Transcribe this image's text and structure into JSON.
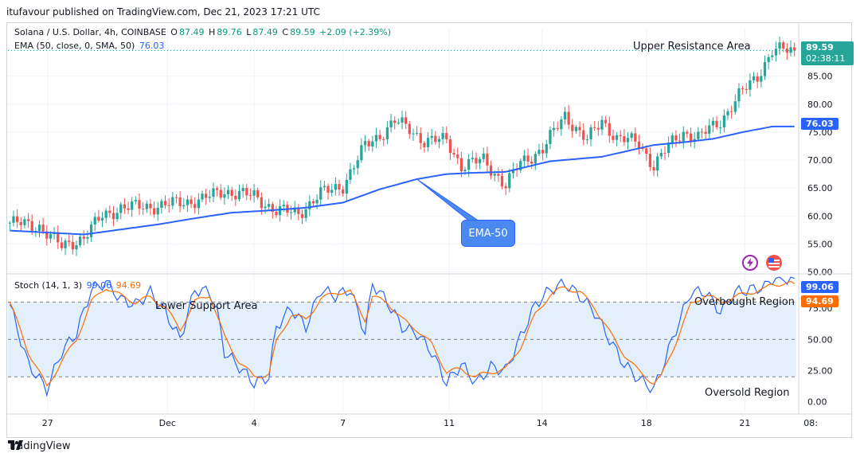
{
  "header": {
    "publisher_line": "itufavour published on TradingView.com, Dec 21, 2023 17:21 UTC"
  },
  "price_legend": {
    "symbol": "Solana / U.S. Dollar, 4h, COINBASE",
    "open_label": "O",
    "open": "87.49",
    "high_label": "H",
    "high": "89.76",
    "low_label": "L",
    "low": "87.49",
    "close_label": "C",
    "close": "89.59",
    "change": "+2.09 (+2.39%)",
    "ema_label": "EMA (50, close, 0, SMA, 50)",
    "ema_value": "76.03"
  },
  "stoch_legend": {
    "label": "Stoch (14, 1, 3)",
    "k_value": "99.06",
    "d_value": "94.69"
  },
  "price_tags": {
    "last_price": "89.59",
    "countdown": "02:38:11",
    "ema": "76.03",
    "stoch_k": "99.06",
    "stoch_d": "94.69"
  },
  "annotations": {
    "upper_resistance": "Upper Resistance Area",
    "lower_support": "Lower Support Area",
    "overbought": "Overbought Region",
    "oversold": "Oversold Region",
    "ema_callout": "EMA-50"
  },
  "footer": {
    "brand": "TradingView"
  },
  "colors": {
    "up": "#26a69a",
    "down": "#ef5350",
    "ema": "#2962ff",
    "stoch_k": "#2962ff",
    "stoch_d": "#ff6d00",
    "band_fill": "#e3f0fb"
  },
  "chart_data": [
    {
      "type": "candlestick",
      "title": "Solana / U.S. Dollar, 4h, COINBASE",
      "y_axis_ticks": [
        50.0,
        55.0,
        60.0,
        65.0,
        70.0,
        75.0,
        80.0,
        85.0
      ],
      "y_tick_labels": [
        "50.00",
        "55.00",
        "60.00",
        "65.00",
        "70.00",
        "75.00",
        "80.00",
        "85.00"
      ],
      "ylim": [
        49.8,
        93.5
      ],
      "x_tick_labels": [
        "27",
        "Dec",
        "4",
        "7",
        "11",
        "14",
        "18",
        "21",
        "08:"
      ],
      "x_tick_index": [
        10.2,
        42.6,
        66.0,
        90.0,
        118.7,
        143.8,
        172.0,
        198.6,
        216.4
      ],
      "n_bars": 213,
      "close_path": [
        [
          0,
          58.8
        ],
        [
          8,
          58.2
        ],
        [
          14,
          54.5
        ],
        [
          20,
          56.2
        ],
        [
          25,
          60.0
        ],
        [
          30,
          61.5
        ],
        [
          40,
          61.8
        ],
        [
          52,
          63.0
        ],
        [
          58,
          64.5
        ],
        [
          66,
          63.5
        ],
        [
          72,
          61.0
        ],
        [
          78,
          60.5
        ],
        [
          84,
          64.0
        ],
        [
          90,
          65.5
        ],
        [
          96,
          72.5
        ],
        [
          100,
          74.5
        ],
        [
          104,
          77.0
        ],
        [
          108,
          75.5
        ],
        [
          112,
          73.5
        ],
        [
          118,
          73.5
        ],
        [
          122,
          69.0
        ],
        [
          128,
          70.0
        ],
        [
          134,
          65.5
        ],
        [
          138,
          69.5
        ],
        [
          144,
          72.0
        ],
        [
          150,
          78.0
        ],
        [
          156,
          73.5
        ],
        [
          160,
          77.0
        ],
        [
          164,
          74.0
        ],
        [
          170,
          73.0
        ],
        [
          174,
          69.0
        ],
        [
          178,
          72.5
        ],
        [
          182,
          75.0
        ],
        [
          186,
          74.0
        ],
        [
          192,
          77.0
        ],
        [
          197,
          81.5
        ],
        [
          202,
          85.0
        ],
        [
          206,
          89.6
        ]
      ],
      "ema50_path": [
        [
          0,
          57.4
        ],
        [
          20,
          56.7
        ],
        [
          30,
          57.6
        ],
        [
          40,
          58.5
        ],
        [
          50,
          59.6
        ],
        [
          60,
          60.6
        ],
        [
          70,
          61.0
        ],
        [
          80,
          61.5
        ],
        [
          90,
          62.4
        ],
        [
          100,
          64.8
        ],
        [
          110,
          66.6
        ],
        [
          118,
          67.5
        ],
        [
          124,
          67.7
        ],
        [
          134,
          67.9
        ],
        [
          146,
          69.8
        ],
        [
          160,
          70.6
        ],
        [
          174,
          72.7
        ],
        [
          182,
          73.2
        ],
        [
          190,
          73.8
        ],
        [
          198,
          75.0
        ],
        [
          206,
          76.0
        ]
      ],
      "last_close": 89.59,
      "ema50_last": 76.03
    },
    {
      "type": "line",
      "title": "Stoch (14, 1, 3)",
      "y_axis_ticks": [
        0.0,
        25.0,
        50.0,
        75.0
      ],
      "y_tick_labels": [
        "0.00",
        "25.00",
        "50.00",
        "75.00"
      ],
      "ylim": [
        -8,
        102
      ],
      "bands": [
        20,
        50,
        80
      ],
      "series": [
        {
          "name": "%K",
          "last": 99.06,
          "points": [
            [
              0,
              78
            ],
            [
              5,
              30
            ],
            [
              10,
              10
            ],
            [
              14,
              40
            ],
            [
              18,
              55
            ],
            [
              22,
              90
            ],
            [
              26,
              96
            ],
            [
              30,
              82
            ],
            [
              34,
              78
            ],
            [
              38,
              88
            ],
            [
              42,
              72
            ],
            [
              46,
              50
            ],
            [
              50,
              90
            ],
            [
              54,
              88
            ],
            [
              56,
              72
            ],
            [
              58,
              40
            ],
            [
              62,
              28
            ],
            [
              66,
              15
            ],
            [
              70,
              20
            ],
            [
              72,
              60
            ],
            [
              76,
              75
            ],
            [
              80,
              60
            ],
            [
              84,
              90
            ],
            [
              88,
              85
            ],
            [
              92,
              90
            ],
            [
              96,
              55
            ],
            [
              98,
              95
            ],
            [
              102,
              80
            ],
            [
              106,
              60
            ],
            [
              110,
              55
            ],
            [
              114,
              40
            ],
            [
              118,
              15
            ],
            [
              122,
              30
            ],
            [
              126,
              15
            ],
            [
              130,
              28
            ],
            [
              134,
              25
            ],
            [
              138,
              52
            ],
            [
              142,
              78
            ],
            [
              146,
              90
            ],
            [
              150,
              95
            ],
            [
              154,
              85
            ],
            [
              158,
              72
            ],
            [
              162,
              50
            ],
            [
              166,
              30
            ],
            [
              170,
              18
            ],
            [
              174,
              10
            ],
            [
              176,
              25
            ],
            [
              180,
              58
            ],
            [
              184,
              88
            ],
            [
              188,
              88
            ],
            [
              192,
              72
            ],
            [
              196,
              88
            ],
            [
              200,
              90
            ],
            [
              204,
              92
            ],
            [
              206,
              99
            ]
          ]
        },
        {
          "name": "%D",
          "last": 94.69,
          "points": [
            [
              0,
              80
            ],
            [
              5,
              40
            ],
            [
              10,
              12
            ],
            [
              14,
              32
            ],
            [
              18,
              50
            ],
            [
              22,
              80
            ],
            [
              26,
              92
            ],
            [
              30,
              85
            ],
            [
              34,
              80
            ],
            [
              38,
              84
            ],
            [
              42,
              76
            ],
            [
              46,
              58
            ],
            [
              50,
              80
            ],
            [
              54,
              86
            ],
            [
              58,
              52
            ],
            [
              62,
              32
            ],
            [
              66,
              20
            ],
            [
              70,
              22
            ],
            [
              72,
              48
            ],
            [
              76,
              70
            ],
            [
              80,
              66
            ],
            [
              84,
              82
            ],
            [
              88,
              88
            ],
            [
              92,
              88
            ],
            [
              96,
              66
            ],
            [
              98,
              84
            ],
            [
              102,
              80
            ],
            [
              106,
              66
            ],
            [
              110,
              58
            ],
            [
              114,
              46
            ],
            [
              118,
              24
            ],
            [
              122,
              26
            ],
            [
              126,
              20
            ],
            [
              130,
              24
            ],
            [
              134,
              26
            ],
            [
              138,
              44
            ],
            [
              142,
              70
            ],
            [
              146,
              86
            ],
            [
              150,
              92
            ],
            [
              154,
              88
            ],
            [
              158,
              76
            ],
            [
              162,
              56
            ],
            [
              166,
              38
            ],
            [
              170,
              24
            ],
            [
              174,
              15
            ],
            [
              176,
              20
            ],
            [
              180,
              48
            ],
            [
              184,
              78
            ],
            [
              188,
              86
            ],
            [
              192,
              80
            ],
            [
              196,
              84
            ],
            [
              200,
              88
            ],
            [
              204,
              90
            ],
            [
              206,
              94.69
            ]
          ]
        }
      ]
    }
  ]
}
